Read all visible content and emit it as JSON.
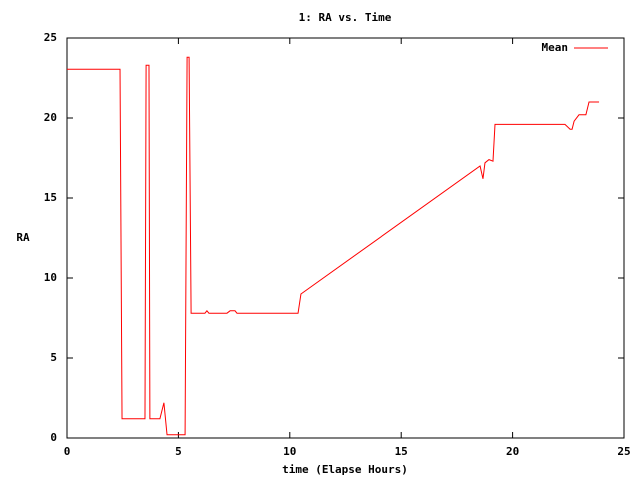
{
  "chart_data": {
    "type": "line",
    "title": "1: RA vs. Time",
    "x_label": "time (Elapse Hours)",
    "y_label": "RA",
    "xlim": [
      0,
      25
    ],
    "ylim": [
      0,
      25
    ],
    "xticks": [
      0,
      5,
      10,
      15,
      20,
      25
    ],
    "yticks": [
      0,
      5,
      10,
      15,
      20,
      25
    ],
    "grid": false,
    "legend_position": "top-right",
    "series": [
      {
        "name": "Mean",
        "color": "#ff0000",
        "x": [
          0,
          2.38,
          2.47,
          3.5,
          3.55,
          3.68,
          3.72,
          4.17,
          4.35,
          4.49,
          5.3,
          5.39,
          5.48,
          5.57,
          6.19,
          6.28,
          6.37,
          7.18,
          7.32,
          7.54,
          7.63,
          10.37,
          10.5,
          18.54,
          18.67,
          18.76,
          18.94,
          19.12,
          19.21,
          22.35,
          22.58,
          22.67,
          22.76,
          22.98,
          23.29,
          23.43,
          23.88
        ],
        "values": [
          23.05,
          23.05,
          1.2,
          1.2,
          23.3,
          23.3,
          1.2,
          1.2,
          2.2,
          0.2,
          0.2,
          23.8,
          23.8,
          7.8,
          7.8,
          7.95,
          7.8,
          7.8,
          7.95,
          7.95,
          7.8,
          7.8,
          9.0,
          17.0,
          16.2,
          17.2,
          17.4,
          17.3,
          19.6,
          19.6,
          19.3,
          19.3,
          19.8,
          20.2,
          20.2,
          21.0,
          21.0
        ]
      }
    ]
  }
}
